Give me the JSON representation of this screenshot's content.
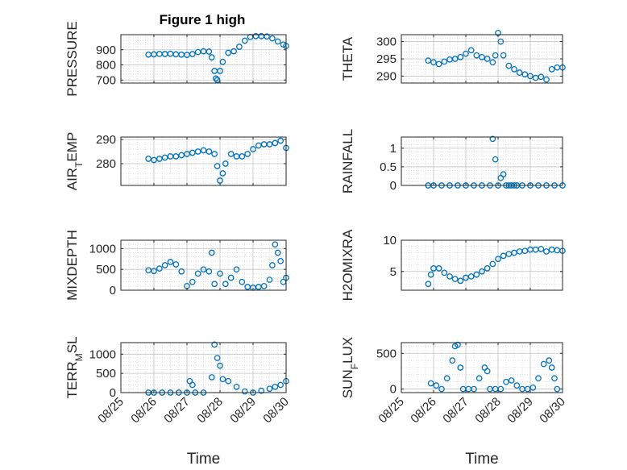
{
  "figure_title": "Figure 1 high",
  "colors": {
    "marker": "#0072BD",
    "axis": "#262626",
    "grid_minor": "#d7d7d7",
    "grid_major": "#c4c4c4"
  },
  "chart_data": [
    {
      "type": "scatter",
      "title": "Figure 1 high",
      "ylabel": "PRESSURE",
      "xlabel": "",
      "xlim": [
        "08/25",
        "08/30"
      ],
      "ylim": [
        680,
        1000
      ],
      "yticks": [
        700,
        800,
        900
      ],
      "grid": "on",
      "x": [
        "08/25 20:00",
        "08/26 00:00",
        "08/26 04:00",
        "08/26 08:00",
        "08/26 12:00",
        "08/26 16:00",
        "08/26 20:00",
        "08/27 00:00",
        "08/27 04:00",
        "08/27 08:00",
        "08/27 12:00",
        "08/27 16:00",
        "08/27 18:00",
        "08/27 20:00",
        "08/27 21:00",
        "08/27 22:00",
        "08/28 00:00",
        "08/28 02:00",
        "08/28 06:00",
        "08/28 10:00",
        "08/28 14:00",
        "08/28 18:00",
        "08/28 22:00",
        "08/29 02:00",
        "08/29 06:00",
        "08/29 10:00",
        "08/29 14:00",
        "08/29 18:00",
        "08/29 22:00",
        "08/30 00:00"
      ],
      "y": [
        868,
        870,
        873,
        872,
        874,
        870,
        868,
        866,
        872,
        885,
        890,
        888,
        850,
        760,
        710,
        700,
        760,
        820,
        880,
        890,
        920,
        960,
        985,
        990,
        990,
        988,
        975,
        955,
        935,
        925
      ]
    },
    {
      "type": "scatter",
      "ylabel": "THETA",
      "xlabel": "",
      "xlim": [
        "08/25",
        "08/30"
      ],
      "ylim": [
        288,
        302
      ],
      "yticks": [
        290,
        295,
        300
      ],
      "grid": "on",
      "x": [
        "08/25 20:00",
        "08/26 00:00",
        "08/26 04:00",
        "08/26 08:00",
        "08/26 12:00",
        "08/26 16:00",
        "08/26 20:00",
        "08/27 00:00",
        "08/27 04:00",
        "08/27 08:00",
        "08/27 12:00",
        "08/27 16:00",
        "08/27 20:00",
        "08/27 22:00",
        "08/28 00:00",
        "08/28 02:00",
        "08/28 04:00",
        "08/28 08:00",
        "08/28 12:00",
        "08/28 16:00",
        "08/28 20:00",
        "08/29 00:00",
        "08/29 04:00",
        "08/29 08:00",
        "08/29 12:00",
        "08/29 16:00",
        "08/29 20:00",
        "08/30 00:00"
      ],
      "y": [
        294.5,
        294,
        293.5,
        294.2,
        294.8,
        295,
        295.5,
        296.5,
        297.5,
        296,
        295.5,
        295,
        294,
        296,
        302.5,
        300,
        296,
        293,
        292,
        291,
        290.5,
        290,
        289.5,
        289.8,
        289,
        292,
        292.5,
        292.5
      ]
    },
    {
      "type": "scatter",
      "ylabel": "AIR_TEMP",
      "xlabel": "",
      "xlim": [
        "08/25",
        "08/30"
      ],
      "ylim": [
        271,
        291
      ],
      "yticks": [
        280,
        290
      ],
      "grid": "on",
      "x": [
        "08/25 20:00",
        "08/26 00:00",
        "08/26 04:00",
        "08/26 08:00",
        "08/26 12:00",
        "08/26 16:00",
        "08/26 20:00",
        "08/27 00:00",
        "08/27 04:00",
        "08/27 08:00",
        "08/27 12:00",
        "08/27 16:00",
        "08/27 20:00",
        "08/27 22:00",
        "08/28 00:00",
        "08/28 02:00",
        "08/28 04:00",
        "08/28 08:00",
        "08/28 12:00",
        "08/28 16:00",
        "08/28 20:00",
        "08/29 00:00",
        "08/29 04:00",
        "08/29 08:00",
        "08/29 12:00",
        "08/29 16:00",
        "08/29 20:00",
        "08/30 00:00"
      ],
      "y": [
        282,
        281.5,
        282,
        282.5,
        283,
        283,
        283.5,
        284,
        284.5,
        285,
        285.5,
        285,
        284,
        279,
        273,
        276,
        280,
        284,
        283,
        283,
        284,
        286,
        287.5,
        288,
        288,
        288.5,
        289.5,
        286.5
      ]
    },
    {
      "type": "scatter",
      "ylabel": "RAINFALL",
      "xlabel": "",
      "xlim": [
        "08/25",
        "08/30"
      ],
      "ylim": [
        0,
        1.3
      ],
      "yticks": [
        0,
        0.5,
        1
      ],
      "grid": "on",
      "x": [
        "08/25 20:00",
        "08/26 00:00",
        "08/26 06:00",
        "08/26 12:00",
        "08/26 18:00",
        "08/27 00:00",
        "08/27 06:00",
        "08/27 12:00",
        "08/27 18:00",
        "08/27 20:00",
        "08/27 22:00",
        "08/28 00:00",
        "08/28 02:00",
        "08/28 04:00",
        "08/28 06:00",
        "08/28 08:00",
        "08/28 10:00",
        "08/28 12:00",
        "08/28 14:00",
        "08/28 18:00",
        "08/29 00:00",
        "08/29 06:00",
        "08/29 12:00",
        "08/29 18:00",
        "08/30 00:00"
      ],
      "y": [
        0,
        0,
        0,
        0,
        0,
        0,
        0,
        0,
        0,
        1.25,
        0.7,
        0,
        0.2,
        0.3,
        0,
        0,
        0,
        0,
        0,
        0,
        0,
        0,
        0,
        0,
        0
      ]
    },
    {
      "type": "scatter",
      "ylabel": "MIXDEPTH",
      "xlabel": "",
      "xlim": [
        "08/25",
        "08/30"
      ],
      "ylim": [
        0,
        1200
      ],
      "yticks": [
        0,
        500,
        1000
      ],
      "grid": "on",
      "x": [
        "08/25 20:00",
        "08/26 00:00",
        "08/26 04:00",
        "08/26 08:00",
        "08/26 12:00",
        "08/26 16:00",
        "08/26 20:00",
        "08/27 00:00",
        "08/27 04:00",
        "08/27 08:00",
        "08/27 12:00",
        "08/27 16:00",
        "08/27 18:00",
        "08/27 20:00",
        "08/28 00:00",
        "08/28 04:00",
        "08/28 08:00",
        "08/28 12:00",
        "08/28 16:00",
        "08/28 20:00",
        "08/29 00:00",
        "08/29 04:00",
        "08/29 08:00",
        "08/29 12:00",
        "08/29 14:00",
        "08/29 16:00",
        "08/29 18:00",
        "08/29 20:00",
        "08/29 22:00",
        "08/30 00:00"
      ],
      "y": [
        480,
        460,
        520,
        600,
        680,
        620,
        450,
        100,
        200,
        400,
        500,
        450,
        900,
        150,
        400,
        150,
        300,
        500,
        200,
        80,
        60,
        80,
        100,
        250,
        600,
        1100,
        900,
        700,
        200,
        300
      ]
    },
    {
      "type": "scatter",
      "ylabel": "H2OMIXRA",
      "xlabel": "",
      "xlim": [
        "08/25",
        "08/30"
      ],
      "ylim": [
        2,
        10
      ],
      "yticks": [
        5,
        10
      ],
      "grid": "on",
      "x": [
        "08/25 20:00",
        "08/25 22:00",
        "08/26 00:00",
        "08/26 04:00",
        "08/26 08:00",
        "08/26 12:00",
        "08/26 16:00",
        "08/26 20:00",
        "08/27 00:00",
        "08/27 04:00",
        "08/27 08:00",
        "08/27 12:00",
        "08/27 16:00",
        "08/27 20:00",
        "08/28 00:00",
        "08/28 04:00",
        "08/28 08:00",
        "08/28 12:00",
        "08/28 16:00",
        "08/28 20:00",
        "08/29 00:00",
        "08/29 04:00",
        "08/29 08:00",
        "08/29 12:00",
        "08/29 16:00",
        "08/29 20:00",
        "08/30 00:00"
      ],
      "y": [
        3,
        4.5,
        5.5,
        5.5,
        4.8,
        4.2,
        3.8,
        3.5,
        4,
        4.2,
        4.5,
        5,
        5.5,
        6.2,
        7,
        7.5,
        7.8,
        8,
        8.2,
        8.3,
        8.5,
        8.5,
        8.6,
        8.2,
        8.5,
        8.4,
        8.3
      ]
    },
    {
      "type": "scatter",
      "ylabel": "TERR_MSL",
      "xlabel": "Time",
      "xlim": [
        "08/25",
        "08/30"
      ],
      "ylim": [
        0,
        1300
      ],
      "yticks": [
        0,
        500,
        1000
      ],
      "xticklabels": [
        "08/25",
        "08/26",
        "08/27",
        "08/28",
        "08/29",
        "08/30"
      ],
      "grid": "on",
      "x": [
        "08/25 20:00",
        "08/26 00:00",
        "08/26 06:00",
        "08/26 12:00",
        "08/26 18:00",
        "08/27 00:00",
        "08/27 02:00",
        "08/27 04:00",
        "08/27 06:00",
        "08/27 12:00",
        "08/27 18:00",
        "08/27 20:00",
        "08/27 22:00",
        "08/28 00:00",
        "08/28 02:00",
        "08/28 06:00",
        "08/28 12:00",
        "08/28 18:00",
        "08/29 00:00",
        "08/29 06:00",
        "08/29 12:00",
        "08/29 16:00",
        "08/29 20:00",
        "08/30 00:00"
      ],
      "y": [
        0,
        0,
        0,
        0,
        0,
        0,
        300,
        200,
        0,
        0,
        400,
        1250,
        900,
        700,
        350,
        300,
        150,
        30,
        0,
        50,
        100,
        150,
        200,
        300
      ]
    },
    {
      "type": "scatter",
      "ylabel": "SUN_FLUX",
      "xlabel": "Time",
      "xlim": [
        "08/25",
        "08/30"
      ],
      "ylim": [
        -50,
        650
      ],
      "yticks": [
        0,
        500
      ],
      "xticklabels": [
        "08/25",
        "08/26",
        "08/27",
        "08/28",
        "08/29",
        "08/30"
      ],
      "grid": "on",
      "x": [
        "08/25 22:00",
        "08/26 02:00",
        "08/26 06:00",
        "08/26 10:00",
        "08/26 14:00",
        "08/26 16:00",
        "08/26 18:00",
        "08/26 20:00",
        "08/26 22:00",
        "08/27 02:00",
        "08/27 06:00",
        "08/27 10:00",
        "08/27 14:00",
        "08/27 16:00",
        "08/27 18:00",
        "08/27 22:00",
        "08/28 02:00",
        "08/28 06:00",
        "08/28 10:00",
        "08/28 14:00",
        "08/28 18:00",
        "08/28 22:00",
        "08/29 02:00",
        "08/29 06:00",
        "08/29 10:00",
        "08/29 14:00",
        "08/29 16:00",
        "08/29 18:00",
        "08/29 20:00"
      ],
      "y": [
        80,
        50,
        0,
        150,
        400,
        600,
        620,
        300,
        0,
        0,
        0,
        150,
        300,
        250,
        0,
        0,
        0,
        100,
        120,
        50,
        0,
        0,
        20,
        150,
        350,
        400,
        300,
        150,
        0
      ]
    }
  ]
}
